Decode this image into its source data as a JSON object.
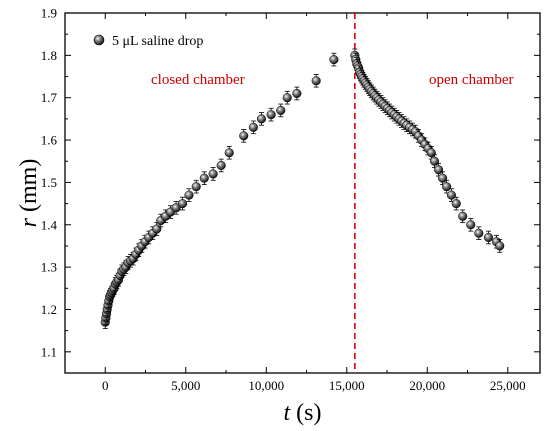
{
  "chart_data": {
    "type": "scatter",
    "xlabel": "t (s)",
    "xlabel_var": "t",
    "xlabel_unit": "(s)",
    "ylabel": "r (mm)",
    "ylabel_var": "r",
    "ylabel_unit": "(mm)",
    "xlim": [
      -2500,
      27000
    ],
    "ylim": [
      1.05,
      1.9
    ],
    "xticks": [
      0,
      5000,
      10000,
      15000,
      20000,
      25000
    ],
    "xtick_labels": [
      "0",
      "5,000",
      "10,000",
      "15,000",
      "20,000",
      "25,000"
    ],
    "yticks": [
      1.1,
      1.2,
      1.3,
      1.4,
      1.5,
      1.6,
      1.7,
      1.8,
      1.9
    ],
    "ytick_labels": [
      "1.1",
      "1.2",
      "1.3",
      "1.4",
      "1.5",
      "1.6",
      "1.7",
      "1.8",
      "1.9"
    ],
    "legend": {
      "label": "5 μL saline drop",
      "position": "top-left"
    },
    "error_bar": 0.015,
    "marker_color": "#000000",
    "annotations": [
      {
        "text": "closed chamber",
        "color": "#cc0000"
      },
      {
        "text": "open chamber",
        "color": "#cc0000"
      }
    ],
    "vline": {
      "x": 15500,
      "color": "#dd0000",
      "style": "dashed"
    },
    "series": [
      {
        "x": [
          0,
          40,
          80,
          120,
          170,
          220,
          270,
          330,
          400,
          470,
          550,
          630,
          720,
          820,
          920,
          1030,
          1150,
          1280,
          1420,
          1570,
          1730,
          1900,
          2080,
          2270,
          2470,
          2700,
          2950,
          3200,
          3450,
          3750,
          4050,
          4400,
          4800,
          5200,
          5650,
          6150,
          6700,
          7200,
          7700,
          8600,
          9200,
          9700,
          10300,
          10900,
          11300,
          11900,
          13100,
          14200,
          15500,
          15560,
          15620,
          15680,
          15740,
          15800,
          15860,
          15930,
          16000,
          16080,
          16160,
          16250,
          16340,
          16430,
          16530,
          16640,
          16750,
          16870,
          16990,
          17120,
          17250,
          17380,
          17520,
          17660,
          17800,
          17950,
          18100,
          18250,
          18400,
          18560,
          18720,
          18900,
          19080,
          19260,
          19450,
          19650,
          19850,
          20050,
          20250,
          20450,
          20700,
          20950,
          21200,
          21500,
          21800,
          22200,
          22700,
          23200,
          23800,
          24300,
          24500
        ],
        "y": [
          1.17,
          1.18,
          1.19,
          1.2,
          1.21,
          1.22,
          1.23,
          1.235,
          1.24,
          1.245,
          1.25,
          1.26,
          1.265,
          1.27,
          1.28,
          1.29,
          1.295,
          1.3,
          1.31,
          1.315,
          1.32,
          1.33,
          1.34,
          1.35,
          1.36,
          1.37,
          1.38,
          1.39,
          1.41,
          1.42,
          1.43,
          1.44,
          1.45,
          1.47,
          1.49,
          1.51,
          1.52,
          1.54,
          1.57,
          1.61,
          1.63,
          1.65,
          1.66,
          1.67,
          1.7,
          1.71,
          1.74,
          1.79,
          1.8,
          1.79,
          1.78,
          1.775,
          1.77,
          1.76,
          1.755,
          1.75,
          1.745,
          1.74,
          1.735,
          1.73,
          1.725,
          1.72,
          1.715,
          1.71,
          1.705,
          1.7,
          1.695,
          1.69,
          1.685,
          1.68,
          1.675,
          1.67,
          1.665,
          1.66,
          1.655,
          1.65,
          1.645,
          1.64,
          1.635,
          1.63,
          1.625,
          1.62,
          1.61,
          1.6,
          1.59,
          1.58,
          1.57,
          1.55,
          1.53,
          1.51,
          1.49,
          1.47,
          1.45,
          1.42,
          1.4,
          1.38,
          1.37,
          1.36,
          1.35
        ]
      }
    ]
  }
}
